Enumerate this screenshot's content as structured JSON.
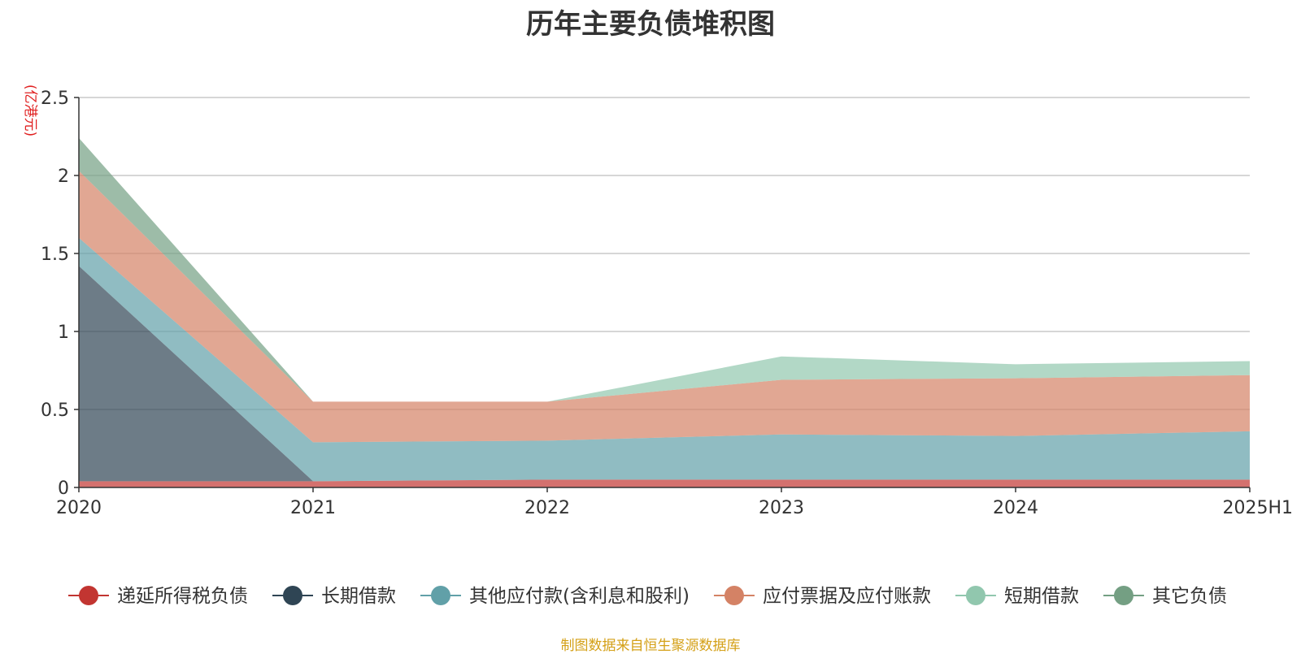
{
  "chart_data": {
    "type": "area",
    "stacked": true,
    "title": "历年主要负债堆积图",
    "unit_label": "(亿港元)",
    "categories": [
      "2020",
      "2021",
      "2022",
      "2023",
      "2024",
      "2025H1"
    ],
    "ylim": [
      0,
      2.5
    ],
    "yticks": [
      "0",
      "0.5",
      "1",
      "1.5",
      "2",
      "2.5"
    ],
    "ytick_values": [
      0,
      0.5,
      1,
      1.5,
      2,
      2.5
    ],
    "grid": true,
    "legend_position": "bottom",
    "series": [
      {
        "name": "递延所得税负债",
        "values": [
          0.04,
          0.04,
          0.05,
          0.05,
          0.05,
          0.05
        ],
        "color": "#c23531"
      },
      {
        "name": "长期借款",
        "values": [
          1.38,
          0.0,
          0.0,
          0.0,
          0.0,
          0.0
        ],
        "color": "#2f4554"
      },
      {
        "name": "其他应付款(含利息和股利)",
        "values": [
          0.18,
          0.25,
          0.25,
          0.29,
          0.28,
          0.31
        ],
        "color": "#61a0a8"
      },
      {
        "name": "应付票据及应付账款",
        "values": [
          0.43,
          0.26,
          0.25,
          0.35,
          0.37,
          0.36
        ],
        "color": "#d48265"
      },
      {
        "name": "短期借款",
        "values": [
          0.0,
          0.0,
          0.0,
          0.15,
          0.09,
          0.09
        ],
        "color": "#91c7ae"
      },
      {
        "name": "其它负债",
        "values": [
          0.21,
          0.0,
          0.0,
          0.0,
          0.0,
          0.0
        ],
        "color": "#749f83"
      }
    ]
  },
  "source_note": "制图数据来自恒生聚源数据库"
}
